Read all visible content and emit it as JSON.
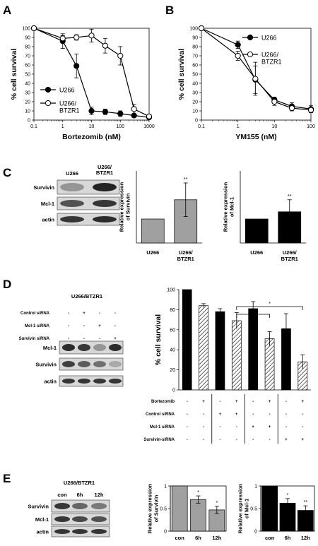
{
  "panels": {
    "A": {
      "letter": "A"
    },
    "B": {
      "letter": "B"
    },
    "C": {
      "letter": "C"
    },
    "D": {
      "letter": "D"
    },
    "E": {
      "letter": "E"
    }
  },
  "blots": {
    "C": {
      "columns": [
        "U266",
        "U266/\nBTZR1"
      ],
      "rows": [
        "Survivin",
        "Mcl-1",
        "actin"
      ]
    },
    "D": {
      "title": "U266/BTZR1",
      "conditions": [
        {
          "label": "Control siRNA",
          "marks": [
            "-",
            "+",
            "-",
            "-"
          ]
        },
        {
          "label": "Mcl-1 siRNA",
          "marks": [
            "-",
            "-",
            "+",
            "-"
          ]
        },
        {
          "label": "Survivin siRNA",
          "marks": [
            "-",
            "-",
            "-",
            "+"
          ]
        }
      ],
      "rows": [
        "Mcl-1",
        "Survivin",
        "actin"
      ]
    },
    "E": {
      "title": "U266/BTZR1",
      "columns": [
        "con",
        "6h",
        "12h"
      ],
      "rows": [
        "Survivin",
        "Mcl-1",
        "actin"
      ]
    }
  },
  "chart_data": [
    {
      "id": "A",
      "type": "line",
      "xlabel": "Bortezomib (nM)",
      "ylabel": "% cell survival",
      "xscale": "log",
      "xlim": [
        0.1,
        1000
      ],
      "ylim": [
        0,
        100
      ],
      "xticks": [
        "0.1",
        "1",
        "10",
        "100",
        "1000"
      ],
      "yticks": [
        0,
        10,
        20,
        30,
        40,
        50,
        60,
        70,
        80,
        90,
        100
      ],
      "legend_position": "bottom-left",
      "series": [
        {
          "name": "U266",
          "marker": "filled",
          "x": [
            0.1,
            1,
            3,
            10,
            30,
            100,
            300,
            1000
          ],
          "y": [
            100,
            86,
            59,
            10,
            9,
            7,
            5,
            3
          ],
          "err": [
            0,
            8,
            13,
            4,
            3,
            3,
            2,
            2
          ]
        },
        {
          "name": "U266/\nBTZR1",
          "marker": "open",
          "x": [
            0.1,
            1,
            3,
            10,
            30,
            100,
            300,
            1000
          ],
          "y": [
            100,
            89,
            90,
            92,
            81,
            70,
            12,
            4
          ],
          "err": [
            0,
            3,
            3,
            7,
            8,
            10,
            5,
            2
          ]
        }
      ]
    },
    {
      "id": "B",
      "type": "line",
      "xlabel": "YM155 (nM)",
      "ylabel": "% cell survival",
      "xscale": "log",
      "xlim": [
        0.1,
        100
      ],
      "ylim": [
        0,
        100
      ],
      "xticks": [
        "0.1",
        "1",
        "10",
        "100"
      ],
      "yticks": [
        0,
        10,
        20,
        30,
        40,
        50,
        60,
        70,
        80,
        90,
        100
      ],
      "legend_position": "top-right",
      "series": [
        {
          "name": "U266",
          "marker": "filled",
          "x": [
            0.1,
            1,
            3,
            10,
            30,
            100
          ],
          "y": [
            100,
            82,
            44,
            22,
            15,
            12
          ],
          "err": [
            0,
            4,
            15,
            3,
            4,
            4
          ]
        },
        {
          "name": "U266/\nBTZR1",
          "marker": "open",
          "x": [
            0.1,
            1,
            3,
            10,
            30,
            100
          ],
          "y": [
            100,
            70,
            45,
            20,
            13,
            11
          ],
          "err": [
            0,
            5,
            18,
            4,
            3,
            3
          ]
        }
      ]
    },
    {
      "id": "C1",
      "type": "bar",
      "ylabel": "Relative expression\nof Survivin",
      "ylim": [
        0,
        3
      ],
      "yticks": [],
      "categories": [
        "U266",
        "U266/\nBTZR1"
      ],
      "values": [
        1.0,
        1.8
      ],
      "err": [
        0,
        0.7
      ],
      "sig": [
        "",
        "**"
      ],
      "color": "#a0a0a0"
    },
    {
      "id": "C2",
      "type": "bar",
      "ylabel": "Relative expression\nof Mcl-1",
      "ylim": [
        0,
        3
      ],
      "yticks": [],
      "categories": [
        "U266",
        "U266/\nBTZR1"
      ],
      "values": [
        1.0,
        1.3
      ],
      "err": [
        0,
        0.5
      ],
      "sig": [
        "",
        "**"
      ],
      "color": "#000000"
    },
    {
      "id": "D",
      "type": "bar",
      "ylabel": "% cell survival",
      "ylim": [
        0,
        100
      ],
      "yticks": [
        0,
        20,
        40,
        60,
        80,
        100
      ],
      "values": [
        100,
        84,
        78,
        69,
        81,
        51,
        61,
        28
      ],
      "err": [
        0,
        2,
        3,
        8,
        7,
        7,
        15,
        7
      ],
      "patterns": [
        "solid",
        "hatched",
        "solid",
        "hatched",
        "solid",
        "hatched",
        "solid",
        "hatched"
      ],
      "significance": [
        {
          "label": "*",
          "from": 3,
          "to": 5
        },
        {
          "label": "*",
          "from": 3,
          "to": 7
        }
      ],
      "table": [
        {
          "label": "Bortezomib",
          "marks": [
            "-",
            "+",
            "-",
            "+",
            "-",
            "+",
            "-",
            "+"
          ]
        },
        {
          "label": "Control siRNA",
          "marks": [
            "-",
            "-",
            "+",
            "+",
            "-",
            "-",
            "-",
            "-"
          ]
        },
        {
          "label": "Mcl-1 siRNA",
          "marks": [
            "-",
            "-",
            "-",
            "-",
            "+",
            "+",
            "-",
            "-"
          ]
        },
        {
          "label": "Survivin-siRNA",
          "marks": [
            "-",
            "-",
            "-",
            "-",
            "-",
            "-",
            "+",
            "+"
          ]
        }
      ]
    },
    {
      "id": "E1",
      "type": "bar",
      "ylabel": "Relative expression\nof Survivin",
      "ylim": [
        0,
        1
      ],
      "yticks": [
        "0",
        "0.5",
        "1"
      ],
      "categories": [
        "con",
        "6h",
        "12h"
      ],
      "values": [
        1.0,
        0.7,
        0.47
      ],
      "err": [
        0,
        0.08,
        0.08
      ],
      "sig": [
        "",
        "*",
        "*"
      ],
      "color": "#a0a0a0"
    },
    {
      "id": "E2",
      "type": "bar",
      "ylabel": "Relative expression\nof Mcl-1",
      "ylim": [
        0,
        1
      ],
      "yticks": [
        "0",
        "0.5",
        "1"
      ],
      "categories": [
        "con",
        "6h",
        "12h"
      ],
      "values": [
        1.0,
        0.62,
        0.46
      ],
      "err": [
        0,
        0.1,
        0.1
      ],
      "sig": [
        "",
        "*",
        "**"
      ],
      "color": "#000000"
    }
  ]
}
